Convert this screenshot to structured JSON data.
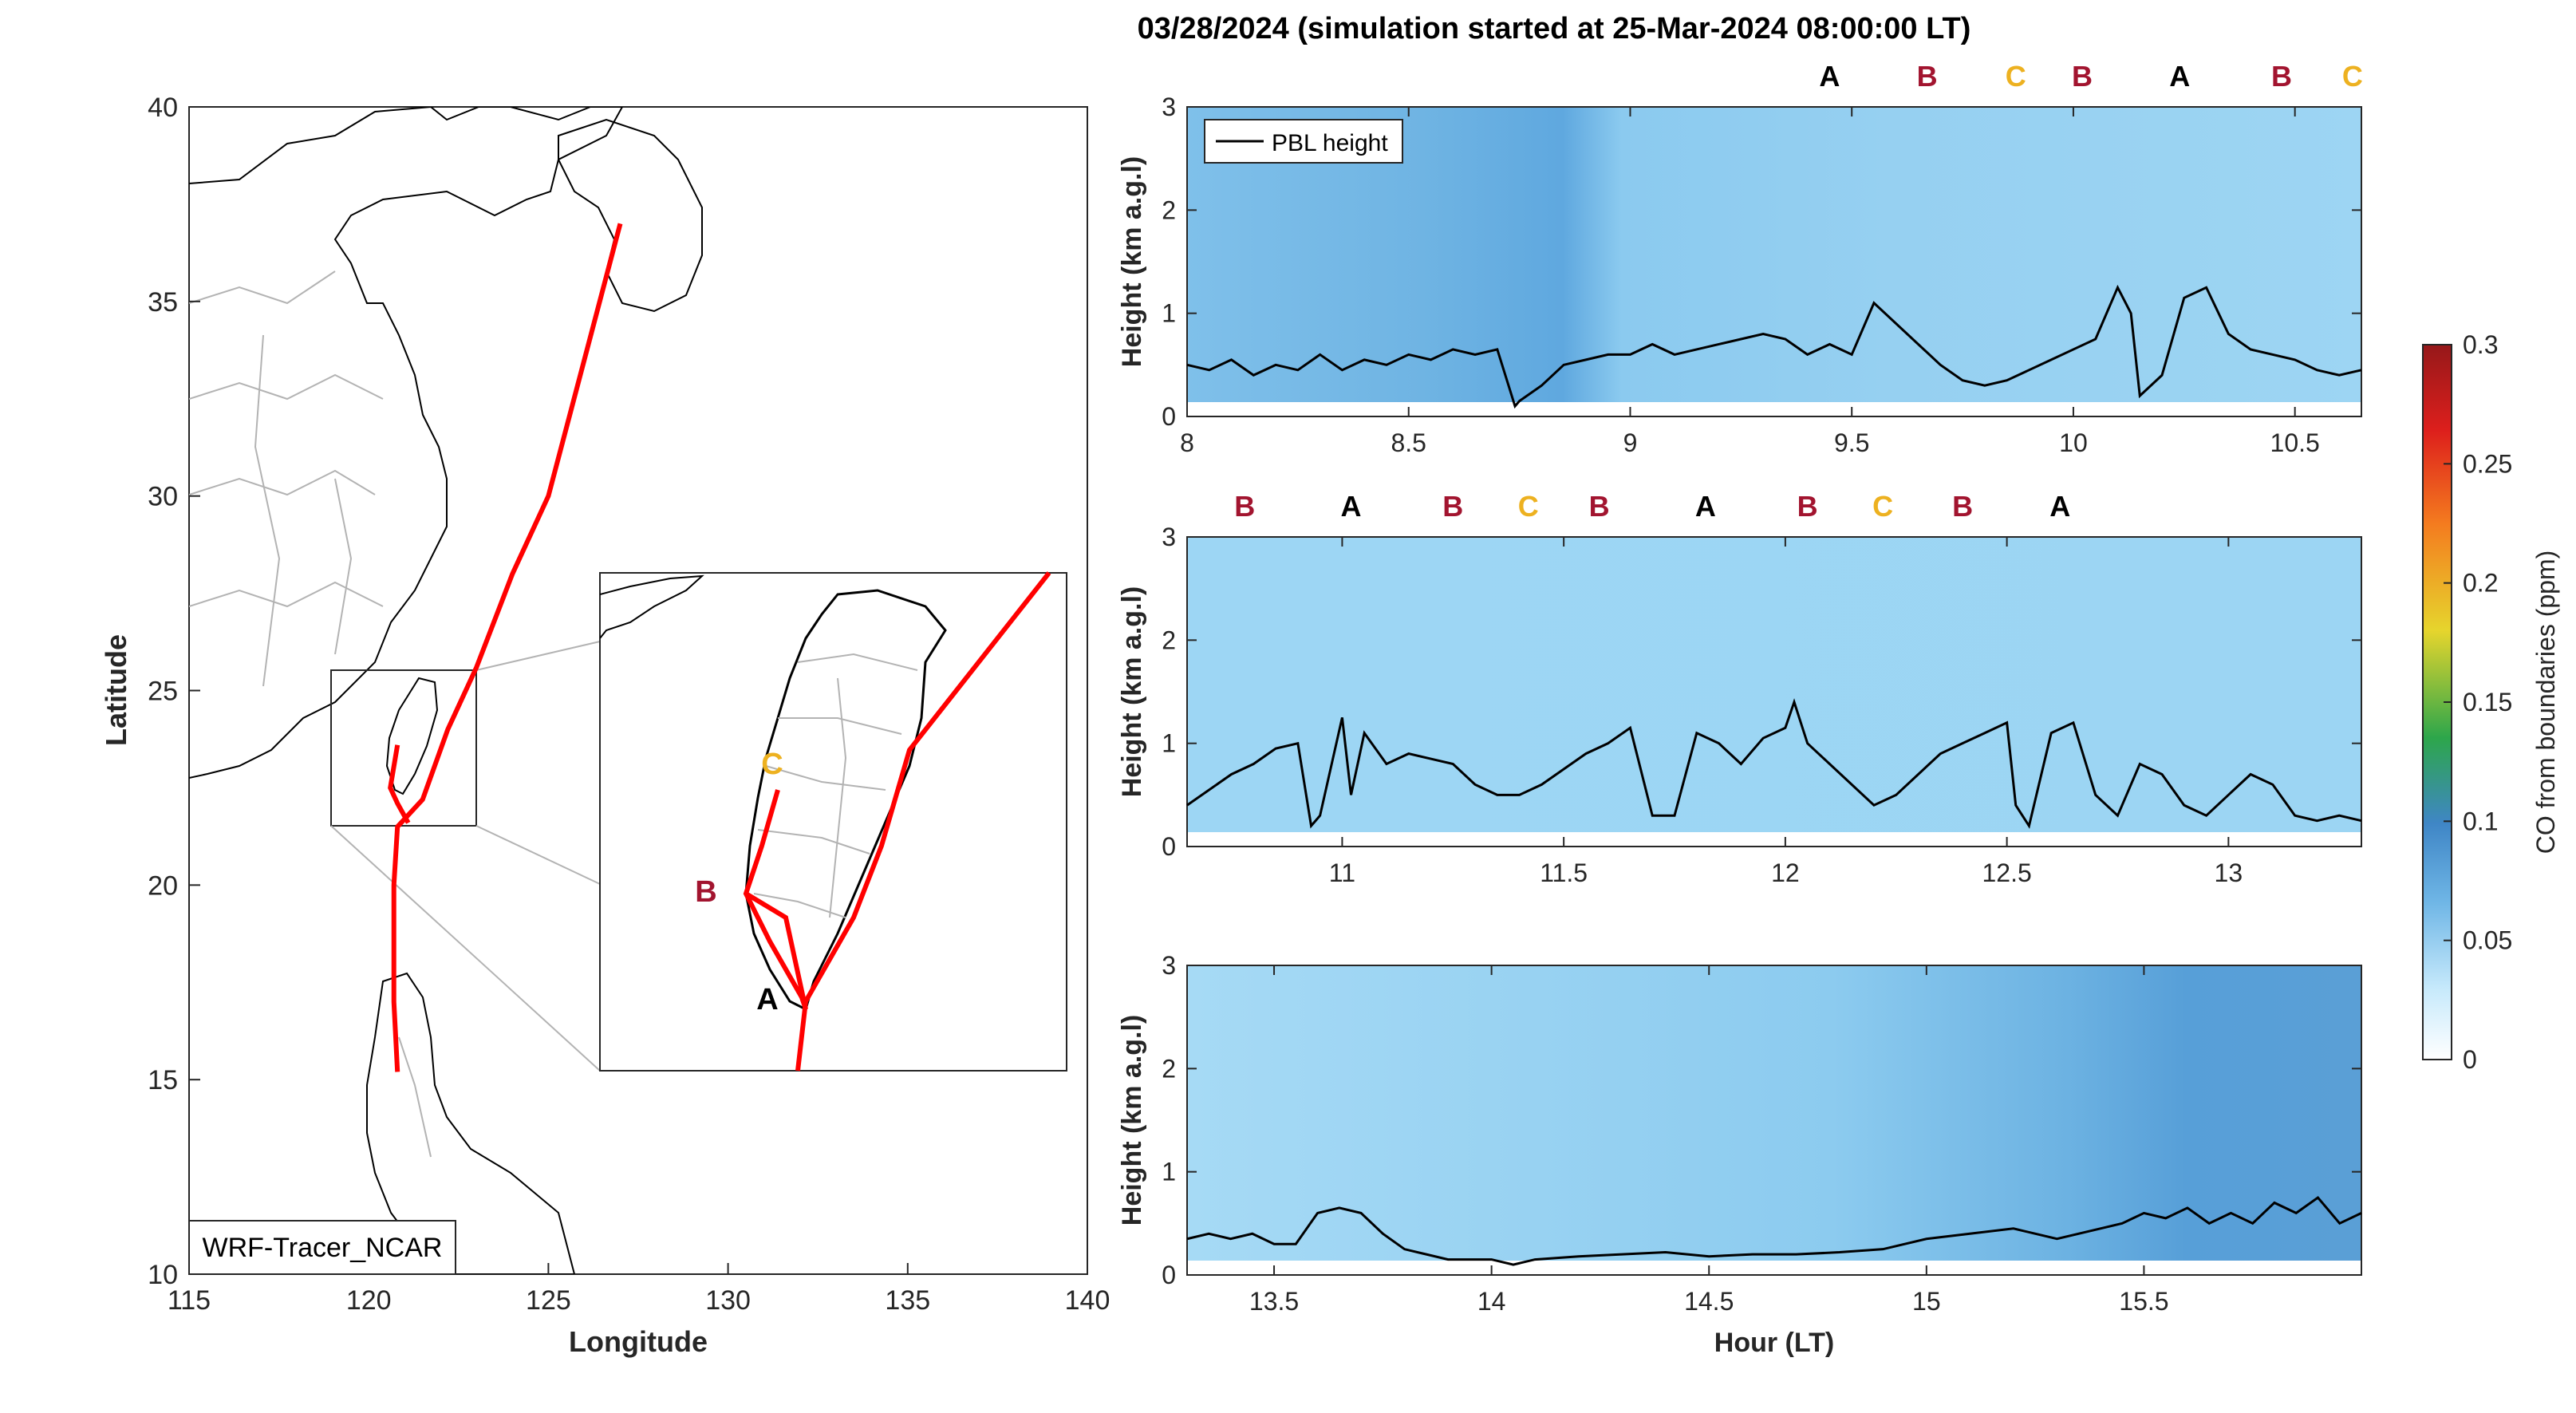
{
  "title": "03/28/2024 (simulation started at 25-Mar-2024 08:00:00 LT)",
  "colors": {
    "track": "#ff0000",
    "A": "#000000",
    "B": "#a2142f",
    "C": "#edb120",
    "pbl_line": "#000000",
    "axis": "#262626",
    "coast": "#000000",
    "borders": "#b3b3b3",
    "ground_gap": "#ffffff"
  },
  "map": {
    "xlabel": "Longitude",
    "ylabel": "Latitude",
    "xlim": [
      115,
      140
    ],
    "ylim": [
      10,
      40
    ],
    "xticks": [
      "115",
      "120",
      "125",
      "130",
      "135",
      "140"
    ],
    "yticks": [
      "10",
      "15",
      "20",
      "25",
      "30",
      "35",
      "40"
    ],
    "model_label": "WRF-Tracer_NCAR",
    "inset_box": {
      "lon": [
        119,
        123
      ],
      "lat": [
        21.5,
        25.5
      ]
    },
    "inset_markers": [
      {
        "id": "C",
        "label": "C"
      },
      {
        "id": "B",
        "label": "B"
      },
      {
        "id": "A",
        "label": "A"
      }
    ]
  },
  "chart_data": [
    {
      "type": "heatmap",
      "panel": 1,
      "xlabel": "",
      "ylabel": "Height (km a.g.l)",
      "xlim": [
        8,
        10.65
      ],
      "ylim": [
        0,
        3
      ],
      "xticks": [
        "8",
        "8.5",
        "9",
        "9.5",
        "10",
        "10.5"
      ],
      "yticks": [
        "0",
        "1",
        "2",
        "3"
      ],
      "legend": "PBL height",
      "pbl_height": {
        "x": [
          8.0,
          8.05,
          8.1,
          8.15,
          8.2,
          8.25,
          8.3,
          8.35,
          8.4,
          8.45,
          8.5,
          8.55,
          8.6,
          8.65,
          8.7,
          8.74,
          8.75,
          8.8,
          8.85,
          8.9,
          8.95,
          9.0,
          9.05,
          9.1,
          9.15,
          9.2,
          9.25,
          9.3,
          9.35,
          9.4,
          9.45,
          9.5,
          9.55,
          9.6,
          9.65,
          9.7,
          9.75,
          9.8,
          9.85,
          9.9,
          9.95,
          10.0,
          10.05,
          10.1,
          10.13,
          10.15,
          10.2,
          10.25,
          10.3,
          10.35,
          10.4,
          10.45,
          10.5,
          10.55,
          10.6,
          10.65
        ],
        "y": [
          0.5,
          0.45,
          0.55,
          0.4,
          0.5,
          0.45,
          0.6,
          0.45,
          0.55,
          0.5,
          0.6,
          0.55,
          0.65,
          0.6,
          0.65,
          0.1,
          0.15,
          0.3,
          0.5,
          0.55,
          0.6,
          0.6,
          0.7,
          0.6,
          0.65,
          0.7,
          0.75,
          0.8,
          0.75,
          0.6,
          0.7,
          0.6,
          1.1,
          0.9,
          0.7,
          0.5,
          0.35,
          0.3,
          0.35,
          0.45,
          0.55,
          0.65,
          0.75,
          1.25,
          1.0,
          0.2,
          0.4,
          1.15,
          1.25,
          0.8,
          0.65,
          0.6,
          0.55,
          0.45,
          0.4,
          0.45
        ]
      },
      "co_concentration": {
        "description_units": "ppm",
        "column_hours": [
          8.0,
          8.5,
          8.7,
          8.75,
          9.5,
          10.5,
          10.65
        ],
        "column_values_surface": [
          0.08,
          0.085,
          0.085,
          0.06,
          0.05,
          0.045,
          0.045
        ],
        "column_values_top": [
          0.065,
          0.05,
          0.045,
          0.045,
          0.04,
          0.04,
          0.04
        ]
      },
      "markers": [
        {
          "label": "A",
          "x": 9.45
        },
        {
          "label": "B",
          "x": 9.67
        },
        {
          "label": "C",
          "x": 9.87
        },
        {
          "label": "B",
          "x": 10.02
        },
        {
          "label": "A",
          "x": 10.24
        },
        {
          "label": "B",
          "x": 10.47
        },
        {
          "label": "C",
          "x": 10.63
        }
      ]
    },
    {
      "type": "heatmap",
      "panel": 2,
      "xlabel": "",
      "ylabel": "Height (km a.g.l)",
      "xlim": [
        10.65,
        13.3
      ],
      "ylim": [
        0,
        3
      ],
      "xticks": [
        "11",
        "11.5",
        "12",
        "12.5",
        "13"
      ],
      "yticks": [
        "0",
        "1",
        "2",
        "3"
      ],
      "pbl_height": {
        "x": [
          10.65,
          10.7,
          10.75,
          10.8,
          10.85,
          10.9,
          10.93,
          10.95,
          11.0,
          11.02,
          11.05,
          11.1,
          11.15,
          11.2,
          11.25,
          11.3,
          11.35,
          11.4,
          11.45,
          11.5,
          11.55,
          11.6,
          11.65,
          11.7,
          11.75,
          11.8,
          11.85,
          11.9,
          11.95,
          12.0,
          12.02,
          12.05,
          12.1,
          12.15,
          12.2,
          12.25,
          12.3,
          12.35,
          12.4,
          12.45,
          12.5,
          12.52,
          12.55,
          12.6,
          12.65,
          12.7,
          12.75,
          12.8,
          12.85,
          12.9,
          12.95,
          13.0,
          13.05,
          13.1,
          13.15,
          13.2,
          13.25,
          13.3
        ],
        "y": [
          0.4,
          0.55,
          0.7,
          0.8,
          0.95,
          1.0,
          0.2,
          0.3,
          1.25,
          0.5,
          1.1,
          0.8,
          0.9,
          0.85,
          0.8,
          0.6,
          0.5,
          0.5,
          0.6,
          0.75,
          0.9,
          1.0,
          1.15,
          0.3,
          0.3,
          1.1,
          1.0,
          0.8,
          1.05,
          1.15,
          1.4,
          1.0,
          0.8,
          0.6,
          0.4,
          0.5,
          0.7,
          0.9,
          1.0,
          1.1,
          1.2,
          0.4,
          0.2,
          1.1,
          1.2,
          0.5,
          0.3,
          0.8,
          0.7,
          0.4,
          0.3,
          0.5,
          0.7,
          0.6,
          0.3,
          0.25,
          0.3,
          0.25
        ]
      },
      "co_concentration": {
        "description_units": "ppm",
        "column_hours": [
          10.65,
          11.5,
          12.5,
          13.3
        ],
        "column_values_surface": [
          0.045,
          0.045,
          0.045,
          0.045
        ],
        "column_values_top": [
          0.04,
          0.04,
          0.04,
          0.04
        ]
      },
      "markers": [
        {
          "label": "B",
          "x": 10.78
        },
        {
          "label": "A",
          "x": 11.02
        },
        {
          "label": "B",
          "x": 11.25
        },
        {
          "label": "C",
          "x": 11.42
        },
        {
          "label": "B",
          "x": 11.58
        },
        {
          "label": "A",
          "x": 11.82
        },
        {
          "label": "B",
          "x": 12.05
        },
        {
          "label": "C",
          "x": 12.22
        },
        {
          "label": "B",
          "x": 12.4
        },
        {
          "label": "A",
          "x": 12.62
        }
      ]
    },
    {
      "type": "heatmap",
      "panel": 3,
      "xlabel": "Hour (LT)",
      "ylabel": "Height (km a.g.l)",
      "xlim": [
        13.3,
        16.0
      ],
      "ylim": [
        0,
        3
      ],
      "xticks": [
        "13.5",
        "14",
        "14.5",
        "15",
        "15.5"
      ],
      "yticks": [
        "0",
        "1",
        "2",
        "3"
      ],
      "pbl_height": {
        "x": [
          13.3,
          13.35,
          13.4,
          13.45,
          13.5,
          13.55,
          13.6,
          13.65,
          13.7,
          13.75,
          13.8,
          13.85,
          13.9,
          13.95,
          14.0,
          14.05,
          14.1,
          14.2,
          14.3,
          14.4,
          14.5,
          14.6,
          14.7,
          14.8,
          14.9,
          15.0,
          15.1,
          15.2,
          15.3,
          15.4,
          15.45,
          15.5,
          15.55,
          15.6,
          15.65,
          15.7,
          15.75,
          15.8,
          15.85,
          15.9,
          15.95,
          16.0
        ],
        "y": [
          0.35,
          0.4,
          0.35,
          0.4,
          0.3,
          0.3,
          0.6,
          0.65,
          0.6,
          0.4,
          0.25,
          0.2,
          0.15,
          0.15,
          0.15,
          0.1,
          0.15,
          0.18,
          0.2,
          0.22,
          0.18,
          0.2,
          0.2,
          0.22,
          0.25,
          0.35,
          0.4,
          0.45,
          0.35,
          0.45,
          0.5,
          0.6,
          0.55,
          0.65,
          0.5,
          0.6,
          0.5,
          0.7,
          0.6,
          0.75,
          0.5,
          0.6
        ]
      },
      "co_concentration": {
        "description_units": "ppm",
        "column_hours": [
          13.3,
          13.5,
          14.0,
          14.5,
          15.0,
          15.3,
          15.5,
          16.0
        ],
        "column_values_surface": [
          0.05,
          0.05,
          0.05,
          0.05,
          0.05,
          0.06,
          0.08,
          0.09
        ],
        "column_values_top": [
          0.04,
          0.04,
          0.04,
          0.045,
          0.05,
          0.06,
          0.085,
          0.095
        ]
      }
    }
  ],
  "colorbar": {
    "label": "CO from boundaries (ppm)",
    "range": [
      0,
      0.3
    ],
    "ticks": [
      "0",
      "0.05",
      "0.1",
      "0.15",
      "0.2",
      "0.25",
      "0.3"
    ],
    "colors": [
      "#ffffff",
      "#c0e8fb",
      "#56a9e0",
      "#4a8fc9",
      "#2fa14f",
      "#e4d62b",
      "#f57f20",
      "#e0221c",
      "#9b1b1b"
    ]
  }
}
